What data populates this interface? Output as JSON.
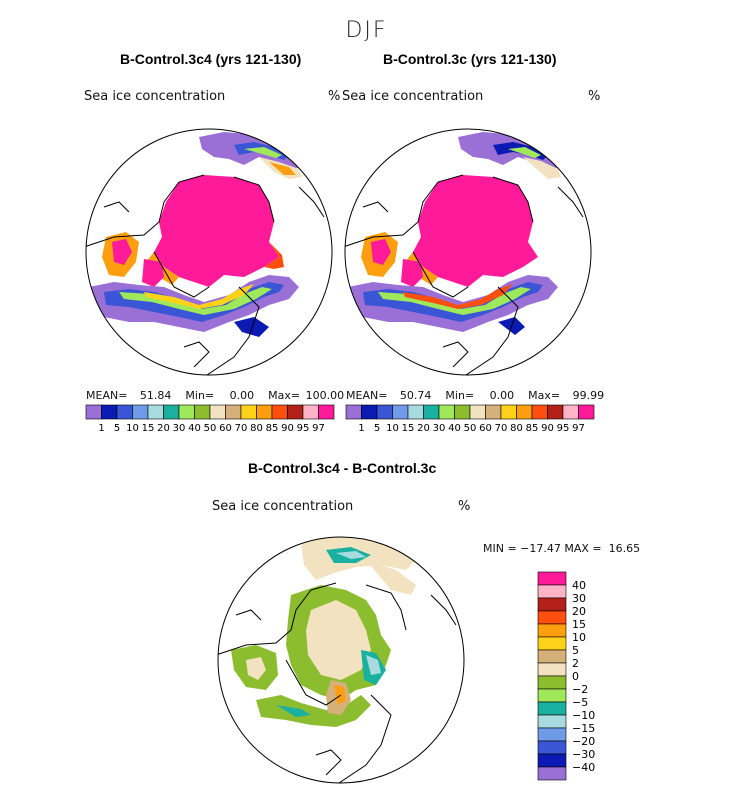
{
  "season": "DJF",
  "variable_label": "Sea ice concentration",
  "units": "%",
  "panels": [
    {
      "title": "B-Control.3c4 (yrs 121-130)",
      "mean_label": "MEAN=",
      "mean": "51.84",
      "min_label": "Min=",
      "min": "0.00",
      "max_label": "Max=",
      "max": "100.00"
    },
    {
      "title": "B-Control.3c (yrs 121-130)",
      "mean_label": "MEAN=",
      "mean": "50.74",
      "min_label": "Min=",
      "min": "0.00",
      "max_label": "Max=",
      "max": "99.99"
    }
  ],
  "horizontal_colorbar": {
    "labels": [
      "1",
      "5",
      "10",
      "15",
      "20",
      "30",
      "40",
      "50",
      "60",
      "70",
      "80",
      "85",
      "90",
      "95",
      "97"
    ],
    "colors": [
      "#9a6fd6",
      "#0a1ab3",
      "#3a55d6",
      "#6f9ae8",
      "#a8dbe0",
      "#1ab0a0",
      "#9fe85a",
      "#8cbd2e",
      "#f2e2c0",
      "#d6b07a",
      "#ffd21a",
      "#ff9f0f",
      "#ff4f0f",
      "#b3201a",
      "#ffb3c6",
      "#ff1a9a"
    ]
  },
  "difference": {
    "title": "B-Control.3c4 - B-Control.3c",
    "stats": "MIN = −17.47 MAX =  16.65",
    "colorbar_labels": [
      "40",
      "30",
      "20",
      "15",
      "10",
      "5",
      "2",
      "0",
      "−2",
      "−5",
      "−10",
      "−15",
      "−20",
      "−30",
      "−40"
    ],
    "colorbar_colors": [
      "#ff1a9a",
      "#ffb3c6",
      "#b3201a",
      "#ff4f0f",
      "#ff9f0f",
      "#ffd21a",
      "#d6b07a",
      "#f2e2c0",
      "#8cbd2e",
      "#9fe85a",
      "#1ab0a0",
      "#a8dbe0",
      "#6f9ae8",
      "#3a55d6",
      "#0a1ab3",
      "#9a6fd6"
    ]
  }
}
